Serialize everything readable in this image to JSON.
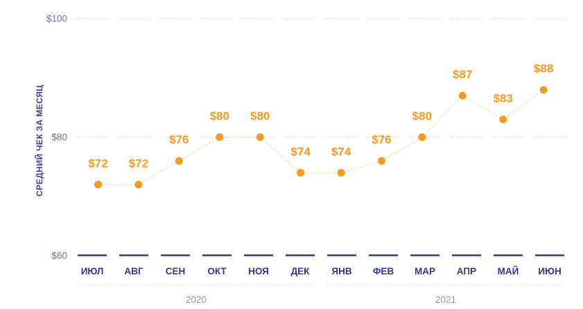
{
  "colors": {
    "accent_orange": "#F59B20",
    "navy": "#2B3990",
    "axis_title_blue": "#3A41A8",
    "tick_slate": "#71759B",
    "grid_gray": "#CBCBCB",
    "year_gray": "#9C9C9C",
    "separator_gray": "#D2D2D2"
  },
  "chart_data": {
    "type": "line",
    "title": "",
    "subtitle": "",
    "xlabel": "",
    "ylabel": "СРЕДНИЙ ЧЕК ЗА МЕСЯЦ",
    "categories": [
      "ИЮЛ",
      "АВГ",
      "СЕН",
      "ОКТ",
      "НОЯ",
      "ДЕК",
      "ЯНВ",
      "ФЕВ",
      "МАР",
      "АПР",
      "МАЙ",
      "ИЮН"
    ],
    "values": [
      72,
      72,
      76,
      80,
      80,
      74,
      74,
      76,
      80,
      87,
      83,
      88
    ],
    "value_labels": [
      "$72",
      "$72",
      "$76",
      "$80",
      "$80",
      "$74",
      "$74",
      "$76",
      "$80",
      "$87",
      "$83",
      "$88"
    ],
    "series_name": "Средний чек",
    "ylim": [
      60,
      100
    ],
    "yticks": [
      {
        "value": 100,
        "label": "$100"
      },
      {
        "value": 80,
        "label": "$80"
      },
      {
        "value": 60,
        "label": "$60"
      }
    ],
    "year_groups": [
      {
        "label": "2020",
        "start_index": 0,
        "end_index": 5
      },
      {
        "label": "2021",
        "start_index": 6,
        "end_index": 11
      }
    ],
    "grid": "dotted horizontal segments per month column at $100 and $80; navy dash row at $60 baseline",
    "legend": "none",
    "marker": "filled circle",
    "line_style": "dotted"
  }
}
